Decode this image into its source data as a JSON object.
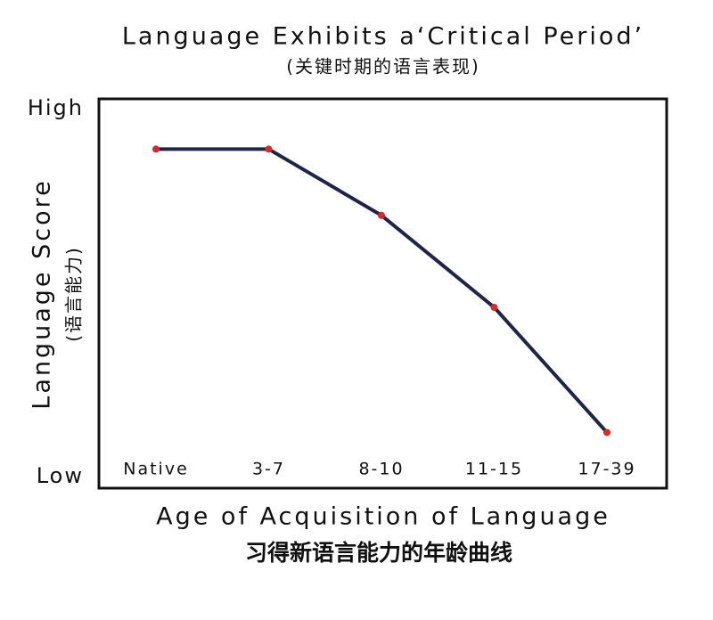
{
  "chart_data": {
    "type": "line",
    "title": "Language Exhibits a‘Critical Period’",
    "subtitle": "(关键时期的语言表现)",
    "y_label": "Language Score",
    "y_sublabel": "(语言能力)",
    "x_label": "Age of Acquisition of Language",
    "x_sublabel": "习得新语言能力的年龄曲线",
    "categories": [
      "Native",
      "3-7",
      "8-10",
      "11-15",
      "17-39"
    ],
    "series": [
      {
        "name": "Language Score",
        "color": "#1f2448",
        "marker_color": "#d42a2a",
        "values": [
          89,
          89,
          71,
          46,
          12
        ]
      }
    ],
    "ylim": [
      0,
      100
    ],
    "yticks": [
      {
        "value": 0,
        "label": "Low"
      },
      {
        "value": 100,
        "label": "High"
      }
    ],
    "grid": false
  }
}
